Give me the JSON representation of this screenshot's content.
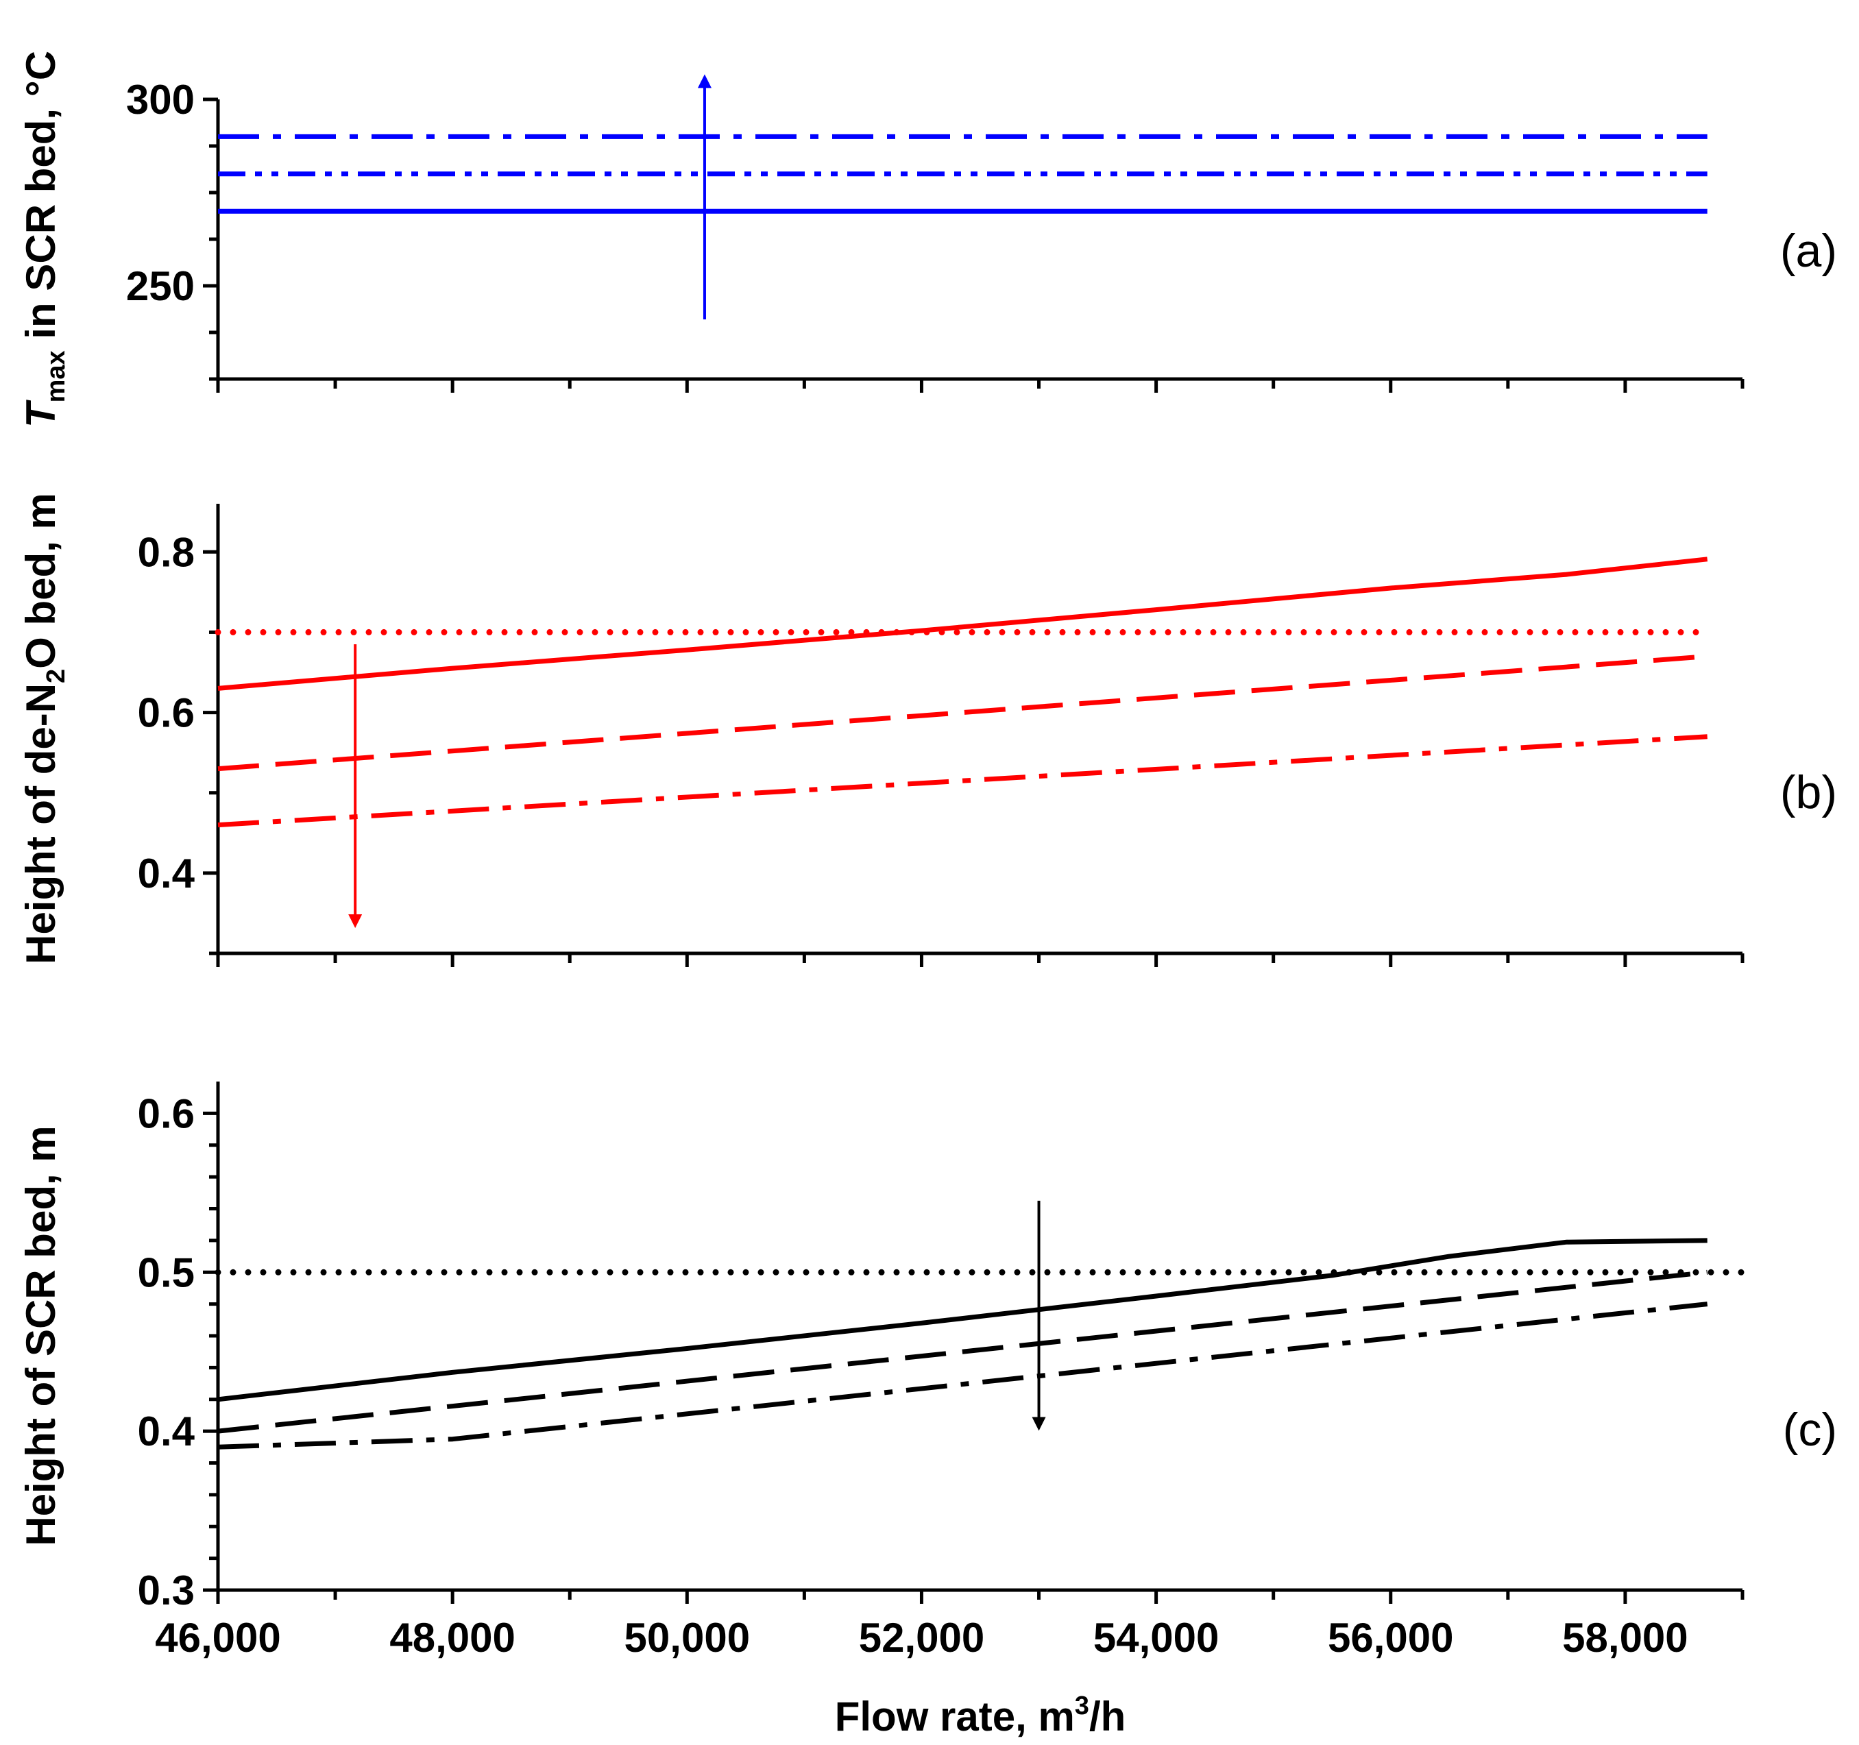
{
  "chart_data": [
    {
      "id": "a",
      "type": "line",
      "panel_label": "(a)",
      "ylabel": {
        "main": "T",
        "sub": "max",
        "rest": " in SCR bed, °C"
      },
      "ylim": [
        225,
        300
      ],
      "yticks": [
        250,
        300
      ],
      "yticks_minor": [
        225,
        237.5,
        262.5,
        275,
        287.5
      ],
      "xlim": [
        46000,
        59000
      ],
      "color": "#0000ff",
      "series": [
        {
          "name": "solid",
          "style": "solid",
          "x": [
            46000,
            58700
          ],
          "y": [
            270,
            270
          ]
        },
        {
          "name": "dash-dot-dot",
          "style": "dashdotdot",
          "x": [
            46000,
            58700
          ],
          "y": [
            280,
            280
          ]
        },
        {
          "name": "dash-dot",
          "style": "dashdot",
          "x": [
            46000,
            58700
          ],
          "y": [
            290,
            290
          ]
        }
      ],
      "arrow": {
        "x": 50150,
        "from": 241,
        "to": 306,
        "direction": "up"
      }
    },
    {
      "id": "b",
      "type": "line",
      "panel_label": "(b)",
      "ylabel": {
        "main": "Height of de-N",
        "sub": "2",
        "rest": "O bed, m"
      },
      "ylim": [
        0.3,
        0.86
      ],
      "yticks": [
        0.4,
        0.6,
        0.8
      ],
      "ytick_labels": [
        "0.4",
        "0.6",
        "0.8"
      ],
      "yticks_minor": [
        0.3,
        0.5,
        0.7
      ],
      "xlim": [
        46000,
        59000
      ],
      "color": "#ff0000",
      "series": [
        {
          "name": "dotted",
          "style": "dotted",
          "x": [
            46000,
            58700
          ],
          "y": [
            0.7,
            0.7
          ]
        },
        {
          "name": "solid",
          "style": "solid",
          "x": [
            46000,
            48000,
            50000,
            52000,
            54000,
            56000,
            57500,
            58700
          ],
          "y": [
            0.63,
            0.655,
            0.678,
            0.702,
            0.728,
            0.755,
            0.772,
            0.791
          ]
        },
        {
          "name": "dashed",
          "style": "dashed",
          "x": [
            46000,
            58700
          ],
          "y": [
            0.53,
            0.67
          ]
        },
        {
          "name": "dash-dot",
          "style": "dashdot",
          "x": [
            46000,
            58700
          ],
          "y": [
            0.46,
            0.57
          ]
        }
      ],
      "arrow": {
        "x": 47170,
        "from": 0.685,
        "to": 0.335,
        "direction": "down"
      }
    },
    {
      "id": "c",
      "type": "line",
      "panel_label": "(c)",
      "ylabel": {
        "main": "Height of SCR bed, m",
        "sub": "",
        "rest": ""
      },
      "ylim": [
        0.3,
        0.62
      ],
      "yticks": [
        0.3,
        0.4,
        0.5,
        0.6
      ],
      "ytick_labels": [
        "0.3",
        "0.4",
        "0.5",
        "0.6"
      ],
      "yticks_minor": [
        0.32,
        0.34,
        0.36,
        0.38,
        0.42,
        0.44,
        0.46,
        0.48,
        0.52,
        0.54,
        0.56,
        0.58
      ],
      "xlim": [
        46000,
        59000
      ],
      "xticks": [
        46000,
        48000,
        50000,
        52000,
        54000,
        56000,
        58000
      ],
      "xtick_labels": [
        "46,000",
        "48,000",
        "50,000",
        "52,000",
        "54,000",
        "56,000",
        "58,000"
      ],
      "xticks_minor": [
        47000,
        49000,
        51000,
        53000,
        55000,
        57000,
        59000
      ],
      "xlabel": {
        "main": "Flow rate, m",
        "sup": "3",
        "rest": "/h"
      },
      "color": "#000000",
      "series": [
        {
          "name": "dotted",
          "style": "dotted",
          "x": [
            46000,
            59000
          ],
          "y": [
            0.5,
            0.5
          ]
        },
        {
          "name": "solid",
          "style": "solid",
          "x": [
            46000,
            48000,
            50000,
            52000,
            54000,
            55500,
            56500,
            57500,
            58700
          ],
          "y": [
            0.42,
            0.437,
            0.452,
            0.468,
            0.485,
            0.498,
            0.51,
            0.519,
            0.52
          ]
        },
        {
          "name": "dashed",
          "style": "dashed",
          "x": [
            46000,
            58700
          ],
          "y": [
            0.4,
            0.5
          ]
        },
        {
          "name": "dash-dot",
          "style": "dashdot",
          "x": [
            46000,
            48000,
            58700
          ],
          "y": [
            0.39,
            0.395,
            0.48
          ]
        }
      ],
      "arrow": {
        "x": 53000,
        "from": 0.545,
        "to": 0.402,
        "direction": "down"
      }
    }
  ]
}
